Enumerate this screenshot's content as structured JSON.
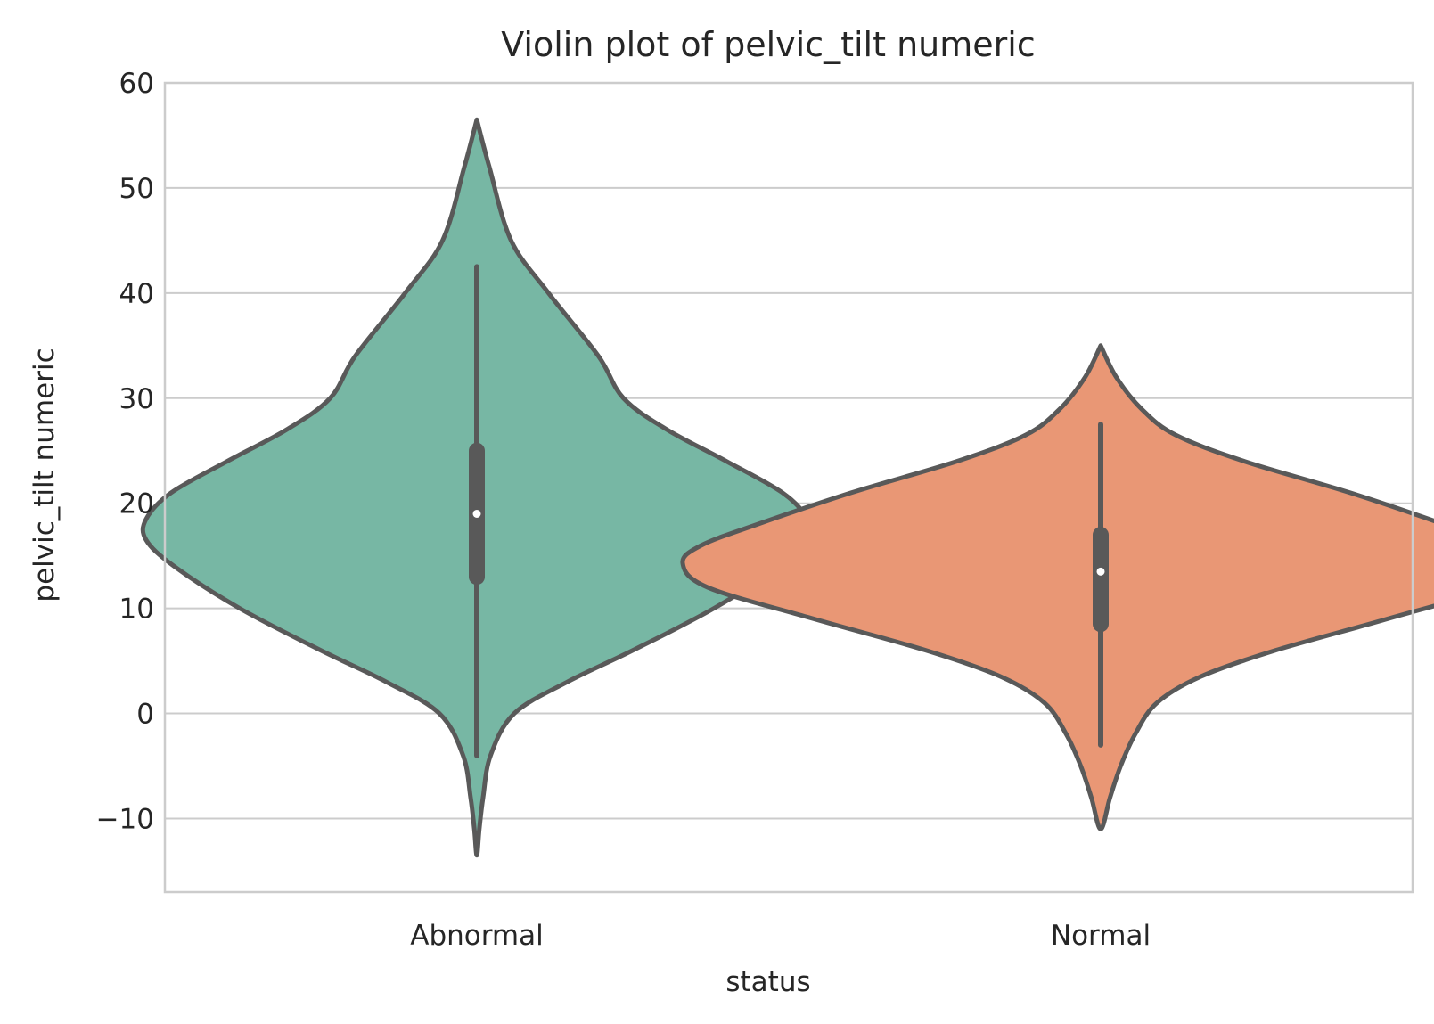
{
  "chart_data": {
    "type": "violin",
    "title": "Violin plot of pelvic_tilt numeric",
    "xlabel": "status",
    "ylabel": "pelvic_tilt numeric",
    "ylim": [
      -17,
      60
    ],
    "yticks": [
      -10,
      0,
      10,
      20,
      30,
      40,
      50,
      60
    ],
    "ytick_labels": [
      "−10",
      "0",
      "10",
      "20",
      "30",
      "40",
      "50",
      "60"
    ],
    "grid": true,
    "categories": [
      "Abnormal",
      "Normal"
    ],
    "colors": {
      "line": "#595959",
      "grid": "#cccccc",
      "median_dot": "#ffffff"
    },
    "series": [
      {
        "category": "Abnormal",
        "color": "#77b7a4",
        "box": {
          "median": 19,
          "q1": 13,
          "q3": 25,
          "whisker_low": -4,
          "whisker_high": 42.5
        },
        "density_profile": [
          {
            "y": 56.5,
            "w": 0.0
          },
          {
            "y": 52.0,
            "w": 0.02
          },
          {
            "y": 45.0,
            "w": 0.055
          },
          {
            "y": 40.0,
            "w": 0.115
          },
          {
            "y": 34.0,
            "w": 0.195
          },
          {
            "y": 30.0,
            "w": 0.235
          },
          {
            "y": 27.0,
            "w": 0.305
          },
          {
            "y": 24.0,
            "w": 0.4
          },
          {
            "y": 21.0,
            "w": 0.49
          },
          {
            "y": 18.5,
            "w": 0.53
          },
          {
            "y": 16.5,
            "w": 0.53
          },
          {
            "y": 14.0,
            "w": 0.485
          },
          {
            "y": 10.0,
            "w": 0.38
          },
          {
            "y": 6.0,
            "w": 0.25
          },
          {
            "y": 3.0,
            "w": 0.145
          },
          {
            "y": 0.0,
            "w": 0.06
          },
          {
            "y": -4.0,
            "w": 0.022
          },
          {
            "y": -8.0,
            "w": 0.01
          },
          {
            "y": -11.0,
            "w": 0.004
          },
          {
            "y": -13.5,
            "w": 0.0
          }
        ]
      },
      {
        "category": "Normal",
        "color": "#e99775",
        "box": {
          "median": 13.5,
          "q1": 8.5,
          "q3": 17,
          "whisker_low": -3,
          "whisker_high": 27.5
        },
        "density_profile": [
          {
            "y": 35.0,
            "w": 0.0
          },
          {
            "y": 32.0,
            "w": 0.025
          },
          {
            "y": 29.0,
            "w": 0.065
          },
          {
            "y": 26.5,
            "w": 0.12
          },
          {
            "y": 24.0,
            "w": 0.23
          },
          {
            "y": 21.0,
            "w": 0.4
          },
          {
            "y": 18.0,
            "w": 0.55
          },
          {
            "y": 16.0,
            "w": 0.64
          },
          {
            "y": 14.3,
            "w": 0.67
          },
          {
            "y": 12.0,
            "w": 0.63
          },
          {
            "y": 9.0,
            "w": 0.46
          },
          {
            "y": 6.0,
            "w": 0.28
          },
          {
            "y": 3.5,
            "w": 0.16
          },
          {
            "y": 1.0,
            "w": 0.09
          },
          {
            "y": -2.0,
            "w": 0.055
          },
          {
            "y": -5.0,
            "w": 0.032
          },
          {
            "y": -8.0,
            "w": 0.015
          },
          {
            "y": -11.0,
            "w": 0.0
          }
        ]
      }
    ]
  }
}
